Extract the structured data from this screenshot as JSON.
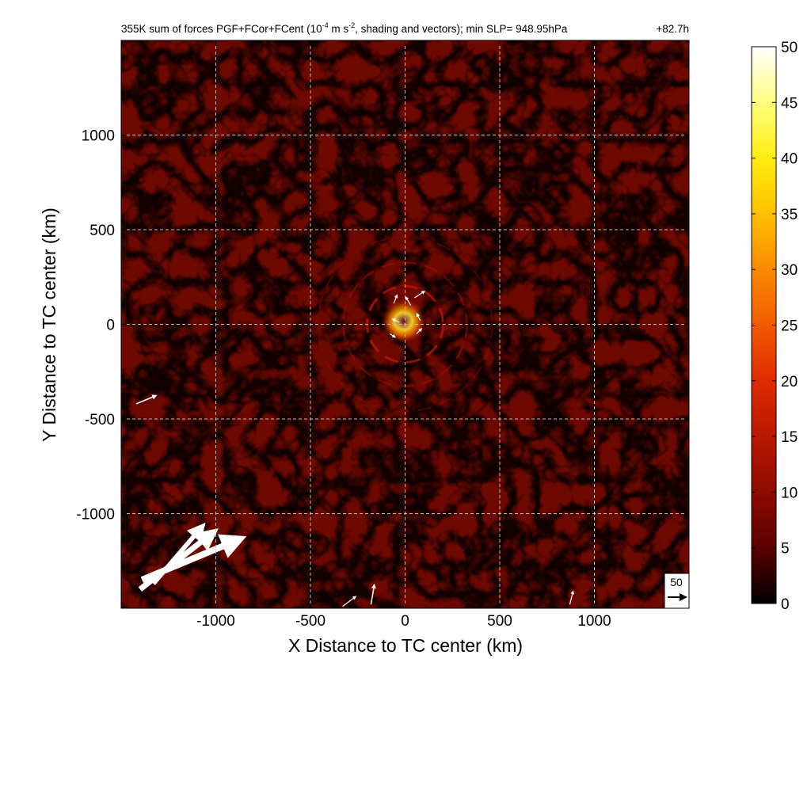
{
  "chart_data": {
    "type": "heatmap",
    "title_prefix": "355K sum of forces PGF+FCor+FCent (10",
    "title_exp1": "-4",
    "title_mid": " m s",
    "title_exp2": "-2",
    "title_suffix": ", shading and vectors); min SLP= 948.95hPa",
    "time_label": "+82.7h",
    "xlabel": "X Distance to TC center (km)",
    "ylabel": "Y Distance to TC center (km)",
    "xlim": [
      -1500,
      1500
    ],
    "ylim": [
      -1500,
      1500
    ],
    "x_ticks": [
      -1000,
      -500,
      0,
      500,
      1000
    ],
    "y_ticks": [
      -1000,
      -500,
      0,
      500,
      1000
    ],
    "x_tick_labels": [
      "-1000",
      "-500",
      "0",
      "500",
      "1000"
    ],
    "y_tick_labels": [
      "-1000",
      "-500",
      "0",
      "500",
      "1000"
    ],
    "grid": true,
    "colorbar": {
      "min": 0,
      "max": 50,
      "ticks": [
        0,
        5,
        10,
        15,
        20,
        25,
        30,
        35,
        40,
        45,
        50
      ],
      "tick_labels": [
        "0",
        "5",
        "10",
        "15",
        "20",
        "25",
        "30",
        "35",
        "40",
        "45",
        "50"
      ],
      "colors": [
        "#000000",
        "#5a0000",
        "#8e0a00",
        "#b81800",
        "#e02a00",
        "#f25a00",
        "#fa8a00",
        "#ffc000",
        "#ffee10",
        "#ffff80",
        "#ffffff"
      ]
    },
    "reference_vector": {
      "label": "50",
      "value": 50
    },
    "vectors": [
      {
        "x": -1390,
        "y": -1350,
        "u": 60,
        "v": 25
      },
      {
        "x": -1400,
        "y": -1400,
        "u": 45,
        "v": 35
      },
      {
        "x": -1330,
        "y": -1370,
        "u": 30,
        "v": 35
      },
      {
        "x": -1420,
        "y": -420,
        "u": 12,
        "v": 5
      },
      {
        "x": -180,
        "y": -1480,
        "u": 2,
        "v": 12
      },
      {
        "x": -330,
        "y": -1490,
        "u": 8,
        "v": 6
      },
      {
        "x": 870,
        "y": -1480,
        "u": 2,
        "v": 8
      },
      {
        "x": 50,
        "y": 140,
        "u": 6,
        "v": 4
      },
      {
        "x": 30,
        "y": 100,
        "u": -3,
        "v": 5
      },
      {
        "x": -60,
        "y": 110,
        "u": 2,
        "v": 5
      },
      {
        "x": -30,
        "y": 10,
        "u": -4,
        "v": 2
      },
      {
        "x": 80,
        "y": 20,
        "u": -2,
        "v": 4
      },
      {
        "x": 60,
        "y": -50,
        "u": 3,
        "v": 3
      },
      {
        "x": -80,
        "y": -50,
        "u": 3,
        "v": -2
      }
    ]
  }
}
